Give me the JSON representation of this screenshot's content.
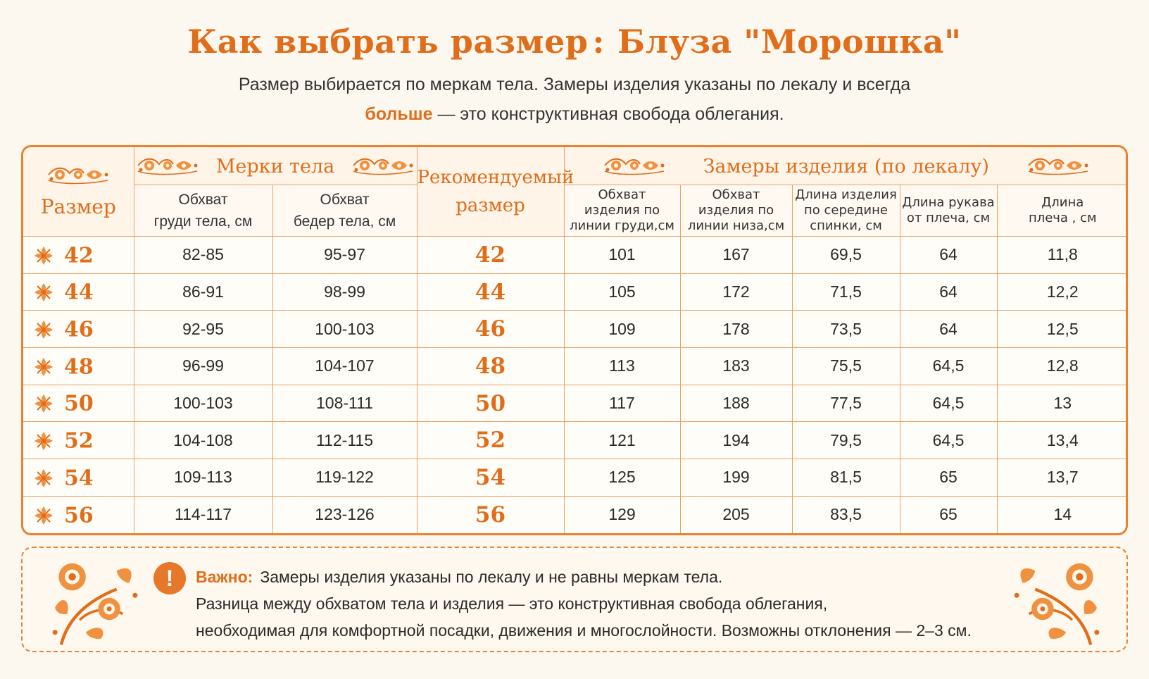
{
  "title": {
    "left": "Как выбрать размер",
    "colon": ":",
    "right": "Блуза \"Морошка\""
  },
  "subtitle": {
    "line1": "Размер выбирается по меркам тела. Замеры изделия указаны по лекалу и всегда",
    "line2_bold": "больше",
    "line2_rest": " — это конструктивная свобода облегания."
  },
  "table": {
    "header": {
      "size": "Размер",
      "body_group": "Мерки тела",
      "recommended_line1": "Рекомендуемый",
      "recommended_line2": "размер",
      "product_group": "Замеры изделия (по лекалу)",
      "body_cols": [
        {
          "line1": "Обхват",
          "line2": "груди тела, см"
        },
        {
          "line1": "Обхват",
          "line2": "бедер тела, см"
        }
      ],
      "product_cols": [
        {
          "line1": "Обхват",
          "line2": "изделия по",
          "line3": "линии груди,см"
        },
        {
          "line1": "Обхват",
          "line2": "изделия по",
          "line3": "линии низа,см"
        },
        {
          "line1": "Длина изделия",
          "line2": "по середине",
          "line3": "спинки, см"
        },
        {
          "line1": "Длина рукава",
          "line2": "от плеча, см",
          "line3": ""
        },
        {
          "line1": "Длина",
          "line2": "плеча , см",
          "line3": ""
        }
      ]
    },
    "rows": [
      {
        "size": "42",
        "chest": "82-85",
        "hips": "95-97",
        "rec": "42",
        "p_chest": "101",
        "p_hem": "167",
        "p_len": "69,5",
        "p_sleeve": "64",
        "p_shoulder": "11,8"
      },
      {
        "size": "44",
        "chest": "86-91",
        "hips": "98-99",
        "rec": "44",
        "p_chest": "105",
        "p_hem": "172",
        "p_len": "71,5",
        "p_sleeve": "64",
        "p_shoulder": "12,2"
      },
      {
        "size": "46",
        "chest": "92-95",
        "hips": "100-103",
        "rec": "46",
        "p_chest": "109",
        "p_hem": "178",
        "p_len": "73,5",
        "p_sleeve": "64",
        "p_shoulder": "12,5"
      },
      {
        "size": "48",
        "chest": "96-99",
        "hips": "104-107",
        "rec": "48",
        "p_chest": "113",
        "p_hem": "183",
        "p_len": "75,5",
        "p_sleeve": "64,5",
        "p_shoulder": "12,8"
      },
      {
        "size": "50",
        "chest": "100-103",
        "hips": "108-111",
        "rec": "50",
        "p_chest": "117",
        "p_hem": "188",
        "p_len": "77,5",
        "p_sleeve": "64,5",
        "p_shoulder": "13"
      },
      {
        "size": "52",
        "chest": "104-108",
        "hips": "112-115",
        "rec": "52",
        "p_chest": "121",
        "p_hem": "194",
        "p_len": "79,5",
        "p_sleeve": "64,5",
        "p_shoulder": "13,4"
      },
      {
        "size": "54",
        "chest": "109-113",
        "hips": "119-122",
        "rec": "54",
        "p_chest": "125",
        "p_hem": "199",
        "p_len": "81,5",
        "p_sleeve": "65",
        "p_shoulder": "13,7"
      },
      {
        "size": "56",
        "chest": "114-117",
        "hips": "123-126",
        "rec": "56",
        "p_chest": "129",
        "p_hem": "205",
        "p_len": "83,5",
        "p_sleeve": "65",
        "p_shoulder": "14"
      }
    ]
  },
  "note": {
    "icon": "exclamation-icon",
    "icon_glyph": "!",
    "label": "Важно:",
    "line1": "Замеры изделия указаны по лекалу и не равны меркам тела.",
    "line2": "Разница между обхватом тела и изделия — это конструктивная свобода облегания,",
    "line3": "необходимая для комфортной посадки, движения и многослойности. Возможны отклонения — 2–3 см."
  },
  "colors": {
    "accent": "#e06d1a",
    "border": "#e78232",
    "background": "#fdf8ef"
  }
}
